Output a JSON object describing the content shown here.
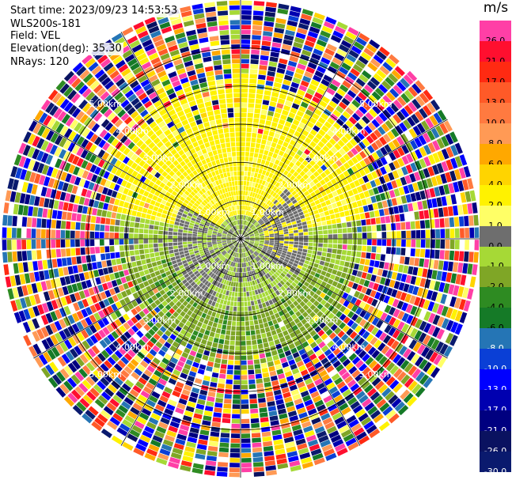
{
  "header": {
    "start_time": "Start time: 2023/09/23 14:53:53",
    "instrument": "WLS200s-181",
    "field": "Field: VEL",
    "elevation": "Elevation(deg): 35.30",
    "nrays": "NRays: 120"
  },
  "colorbar": {
    "unit": "m/s",
    "levels": [
      {
        "label": "26.0",
        "color": "#ff3fa6"
      },
      {
        "label": "21.0",
        "color": "#ff0f2f"
      },
      {
        "label": "17.0",
        "color": "#ff2a12"
      },
      {
        "label": "13.0",
        "color": "#ff5a28"
      },
      {
        "label": "10.0",
        "color": "#ff7a40"
      },
      {
        "label": "8.0",
        "color": "#ff9a55"
      },
      {
        "label": "6.0",
        "color": "#ffa800"
      },
      {
        "label": "4.0",
        "color": "#ffd400"
      },
      {
        "label": "2.0",
        "color": "#fff200"
      },
      {
        "label": "1.0",
        "color": "#ffff66"
      },
      {
        "label": "0.0",
        "color": "#6e6e6e"
      },
      {
        "label": "-1.0",
        "color": "#a6d936"
      },
      {
        "label": "-2.0",
        "color": "#7fa626"
      },
      {
        "label": "-4.0",
        "color": "#2e8b22"
      },
      {
        "label": "-6.0",
        "color": "#157a27"
      },
      {
        "label": "-8.0",
        "color": "#2575b5"
      },
      {
        "label": "-10.0",
        "color": "#0a3fd6"
      },
      {
        "label": "-13.0",
        "color": "#0000ff"
      },
      {
        "label": "-17.0",
        "color": "#0000b0"
      },
      {
        "label": "-21.0",
        "color": "#000080"
      },
      {
        "label": "-26.0",
        "color": "#0a1260"
      },
      {
        "label": "-30.0",
        "color": "#0a1a6e"
      }
    ]
  },
  "range_rings": {
    "labels": [
      "1.00km",
      "2.00km",
      "3.00km",
      "4.00km",
      "5.00km"
    ],
    "distances_km": [
      1,
      2,
      3,
      4,
      5
    ]
  },
  "scan": {
    "nrays": 120,
    "max_range_km": 5.0
  }
}
